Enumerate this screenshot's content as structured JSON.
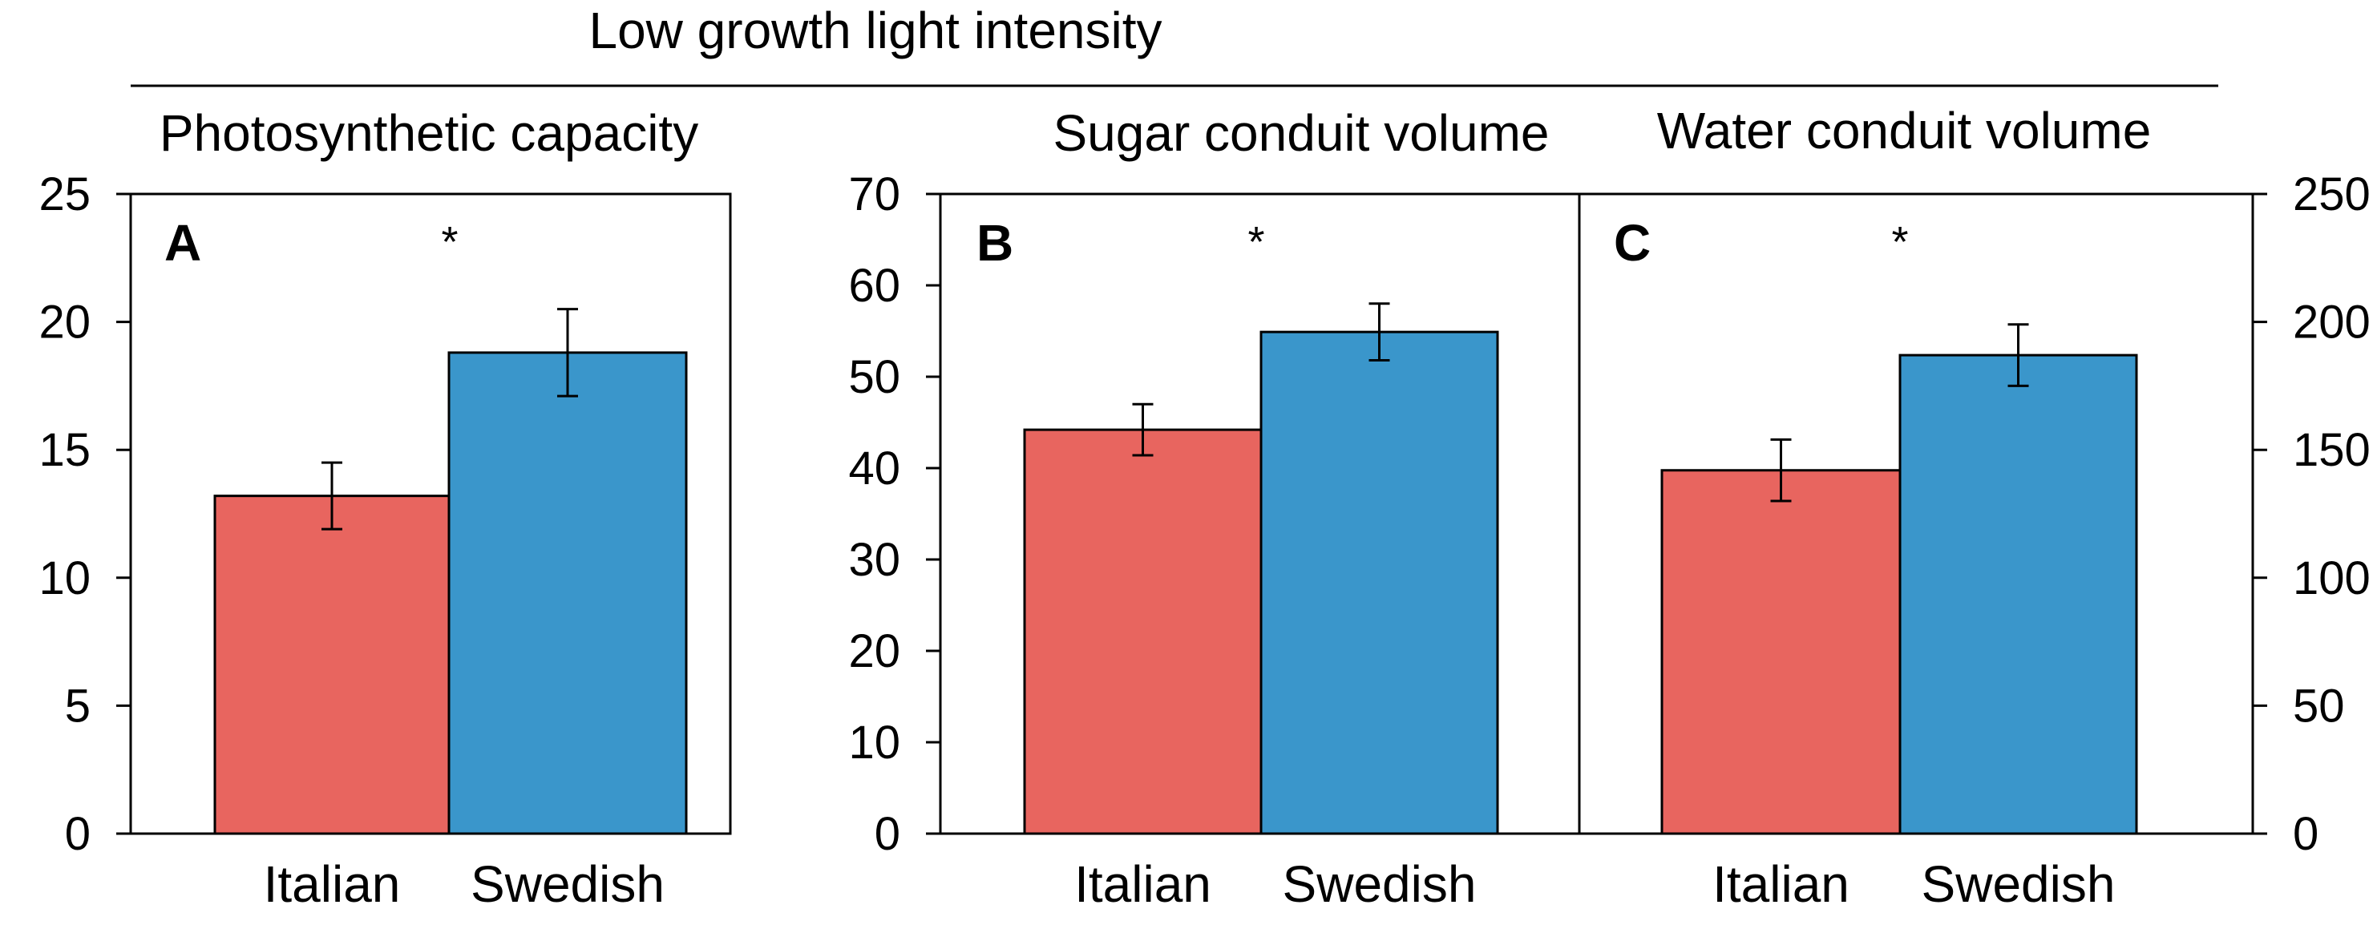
{
  "title": "Low growth light intensity",
  "chart_data": [
    {
      "type": "bar",
      "panel": "A",
      "title": "Photosynthetic capacity",
      "categories": [
        "Italian",
        "Swedish"
      ],
      "values": [
        13.2,
        18.8
      ],
      "errors": [
        1.3,
        1.7
      ],
      "significance": "*",
      "ylim": [
        0,
        25
      ],
      "yticks": [
        0,
        5,
        10,
        15,
        20,
        25
      ],
      "yaxis": "left",
      "xlabel": "",
      "ylabel": ""
    },
    {
      "type": "bar",
      "panel": "B",
      "title": "Sugar conduit volume",
      "categories": [
        "Italian",
        "Swedish"
      ],
      "values": [
        44.2,
        54.9
      ],
      "errors": [
        2.8,
        3.1
      ],
      "significance": "*",
      "ylim": [
        0,
        70
      ],
      "yticks": [
        0,
        10,
        20,
        30,
        40,
        50,
        60,
        70
      ],
      "yaxis": "left",
      "xlabel": "",
      "ylabel": ""
    },
    {
      "type": "bar",
      "panel": "C",
      "title": "Water conduit volume",
      "categories": [
        "Italian",
        "Swedish"
      ],
      "values": [
        142,
        187
      ],
      "errors": [
        12,
        12
      ],
      "significance": "*",
      "ylim": [
        0,
        250
      ],
      "yticks": [
        0,
        50,
        100,
        150,
        200,
        250
      ],
      "yaxis": "right",
      "xlabel": "",
      "ylabel": ""
    }
  ],
  "colors": {
    "Italian": "#e8655f",
    "Swedish": "#3a96cb"
  }
}
